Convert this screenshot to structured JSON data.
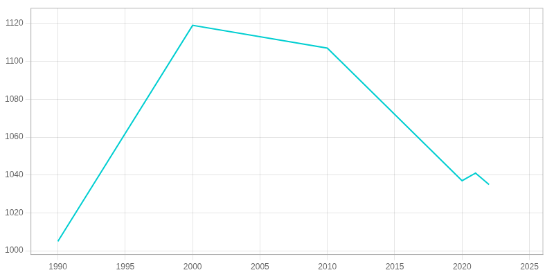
{
  "chart_data": {
    "type": "line",
    "x": [
      1990,
      2000,
      2010,
      2020,
      2021,
      2022
    ],
    "values": [
      1005,
      1119,
      1107,
      1037,
      1041,
      1035
    ],
    "color": "#00CED1",
    "xlim": [
      1988,
      2026
    ],
    "ylim": [
      998,
      1128
    ],
    "xticks": [
      1990,
      1995,
      2000,
      2005,
      2010,
      2015,
      2020,
      2025
    ],
    "yticks": [
      1000,
      1020,
      1040,
      1060,
      1080,
      1100,
      1120
    ],
    "grid": true
  }
}
